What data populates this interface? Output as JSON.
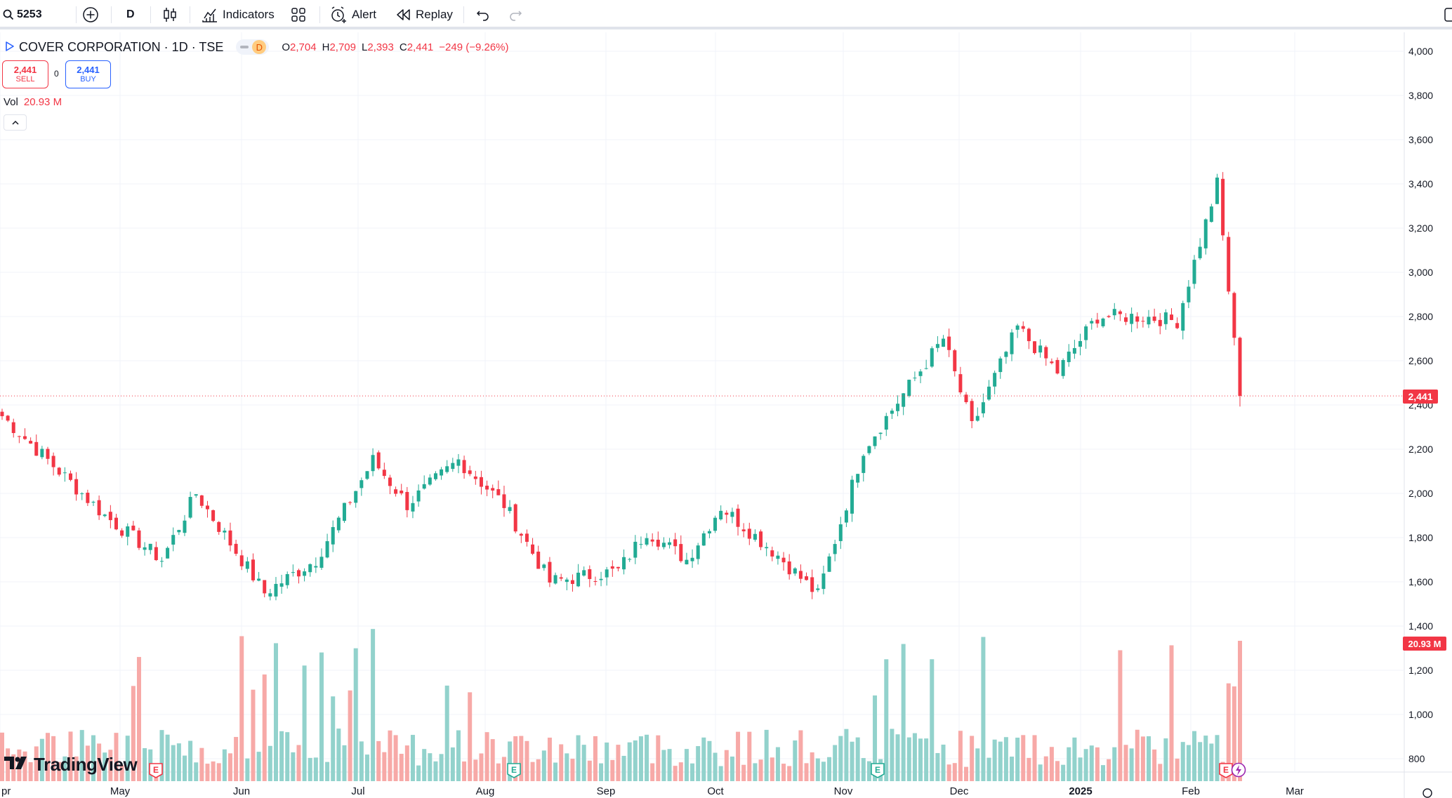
{
  "toolbar": {
    "symbol": "5253",
    "interval": "D",
    "indicators_label": "Indicators",
    "alert_label": "Alert",
    "replay_label": "Replay"
  },
  "legend": {
    "title": "COVER CORPORATION · 1D · TSE",
    "badge": "D",
    "open_key": "O",
    "open": "2,704",
    "high_key": "H",
    "high": "2,709",
    "low_key": "L",
    "low": "2,393",
    "close_key": "C",
    "close": "2,441",
    "change": "−249 (−9.26%)"
  },
  "trade": {
    "sell_price": "2,441",
    "sell_label": "SELL",
    "spread": "0",
    "buy_price": "2,441",
    "buy_label": "BUY"
  },
  "volume": {
    "label": "Vol",
    "value": "20.93 M"
  },
  "price_scale": [
    "4,000",
    "3,800",
    "3,600",
    "3,400",
    "3,200",
    "3,000",
    "2,800",
    "2,600",
    "2,400",
    "2,200",
    "2,000",
    "1,800",
    "1,600",
    "1,400",
    "1,200",
    "1,000",
    "800"
  ],
  "last_price_tag": "2,441",
  "last_volume_tag": "20.93 M",
  "time_scale": [
    {
      "label": "pr",
      "bold": false
    },
    {
      "label": "May",
      "bold": false
    },
    {
      "label": "Jun",
      "bold": false
    },
    {
      "label": "Jul",
      "bold": false
    },
    {
      "label": "Aug",
      "bold": false
    },
    {
      "label": "Sep",
      "bold": false
    },
    {
      "label": "Oct",
      "bold": false
    },
    {
      "label": "Nov",
      "bold": false
    },
    {
      "label": "Dec",
      "bold": false
    },
    {
      "label": "2025",
      "bold": true
    },
    {
      "label": "Feb",
      "bold": false
    },
    {
      "label": "Mar",
      "bold": false
    }
  ],
  "watermark": "TradingView",
  "colors": {
    "up": "#22ab94",
    "down": "#f23645",
    "up_vol": "#92d2cc",
    "down_vol": "#f7a9a7",
    "accent": "#2962ff"
  },
  "chart_data": {
    "type": "candlestick",
    "symbol": "5253",
    "interval": "1D",
    "y_range": [
      800,
      4000
    ],
    "last": {
      "open": 2704,
      "high": 2709,
      "low": 2393,
      "close": 2441,
      "volume": "20.93M"
    },
    "trend_points": [
      {
        "date": "Apr",
        "close": 2350
      },
      {
        "date": "early May",
        "close": 1900
      },
      {
        "date": "mid May",
        "close": 1700
      },
      {
        "date": "mid May spike",
        "close": 2000
      },
      {
        "date": "late May",
        "close": 1550
      },
      {
        "date": "early Jun",
        "close": 1700
      },
      {
        "date": "late Jun",
        "close": 2150
      },
      {
        "date": "early Jul",
        "close": 1950
      },
      {
        "date": "mid Jul",
        "close": 2150
      },
      {
        "date": "late Jul",
        "close": 1950
      },
      {
        "date": "early Aug",
        "close": 1600
      },
      {
        "date": "late Aug",
        "close": 1650
      },
      {
        "date": "early Sep",
        "close": 1830
      },
      {
        "date": "mid Sep",
        "close": 1700
      },
      {
        "date": "late Sep",
        "close": 1940
      },
      {
        "date": "mid Oct",
        "close": 1720
      },
      {
        "date": "late Oct",
        "close": 1540
      },
      {
        "date": "early Nov",
        "close": 2200
      },
      {
        "date": "mid Nov",
        "close": 2450
      },
      {
        "date": "late Nov",
        "close": 2700
      },
      {
        "date": "early Dec",
        "close": 2300
      },
      {
        "date": "mid Dec",
        "close": 2750
      },
      {
        "date": "late Dec",
        "close": 2550
      },
      {
        "date": "early Jan",
        "close": 2800
      },
      {
        "date": "mid Jan",
        "close": 2800
      },
      {
        "date": "late Jan",
        "close": 2780
      },
      {
        "date": "early Feb",
        "close": 3400
      },
      {
        "date": "mid Feb",
        "close": 2441
      }
    ]
  }
}
